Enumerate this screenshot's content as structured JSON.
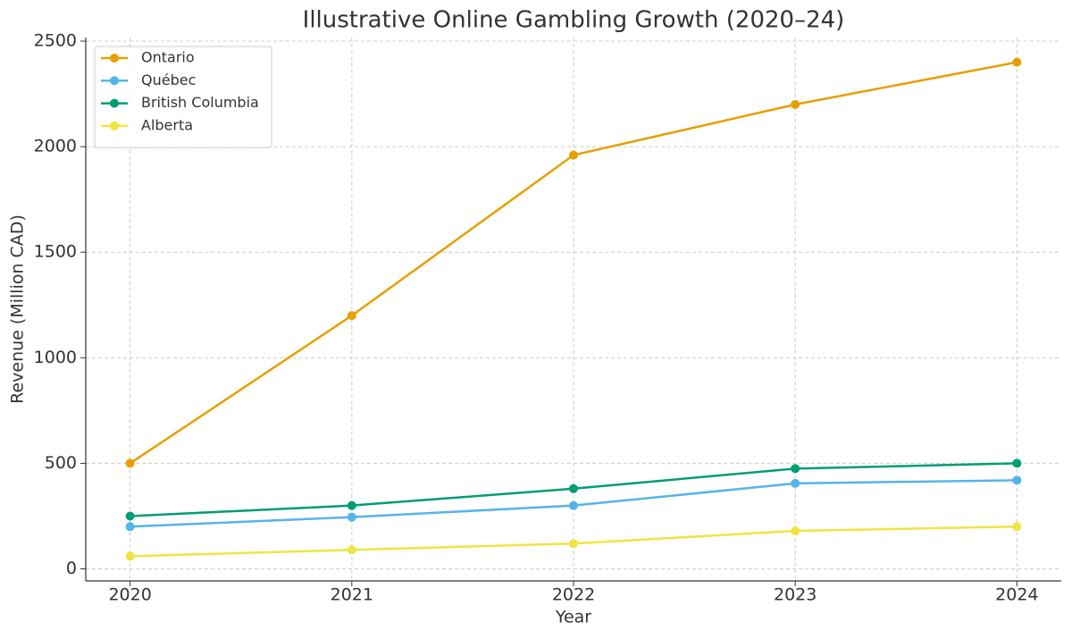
{
  "chart_data": {
    "type": "line",
    "title": "Illustrative Online Gambling Growth (2020–24)",
    "x_label": "Year",
    "y_label": "Revenue (Million CAD)",
    "x": [
      2020,
      2021,
      2022,
      2023,
      2024
    ],
    "series": [
      {
        "name": "Ontario",
        "color": "#E69F00",
        "values": [
          500,
          1200,
          1960,
          2200,
          2400
        ]
      },
      {
        "name": "Québec",
        "color": "#56B4E9",
        "values": [
          200,
          245,
          300,
          405,
          420
        ]
      },
      {
        "name": "British Columbia",
        "color": "#009E73",
        "values": [
          250,
          300,
          380,
          475,
          500
        ]
      },
      {
        "name": "Alberta",
        "color": "#F0E442",
        "values": [
          60,
          90,
          120,
          180,
          200
        ]
      }
    ],
    "xlim": [
      2019.8,
      2024.2
    ],
    "xticks": [
      2020,
      2021,
      2022,
      2023,
      2024
    ],
    "ylim": [
      -57,
      2517
    ],
    "yticks": [
      0,
      500,
      1000,
      1500,
      2000,
      2500
    ],
    "grid": true,
    "legend": "upper-left"
  }
}
